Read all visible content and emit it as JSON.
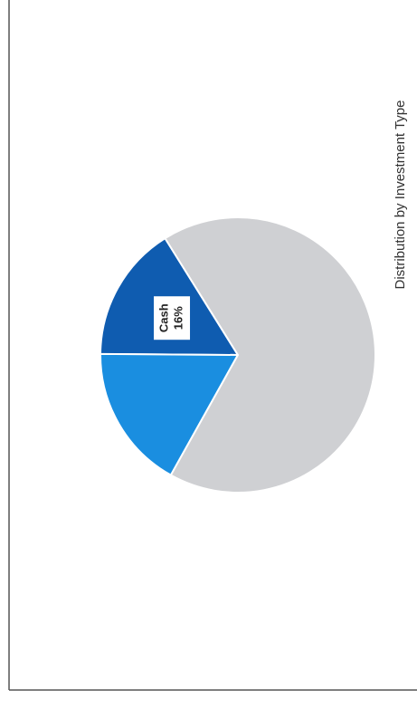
{
  "chart_data": {
    "type": "pie",
    "title": "Distribution by Investment Type",
    "categories": [
      "Cash",
      null,
      null
    ],
    "values": [
      16,
      17,
      67
    ],
    "value_labels": [
      "16%",
      null,
      null
    ],
    "colors": [
      "#0f5cb0",
      "#1a8ee0",
      "#cfd0d3"
    ]
  }
}
